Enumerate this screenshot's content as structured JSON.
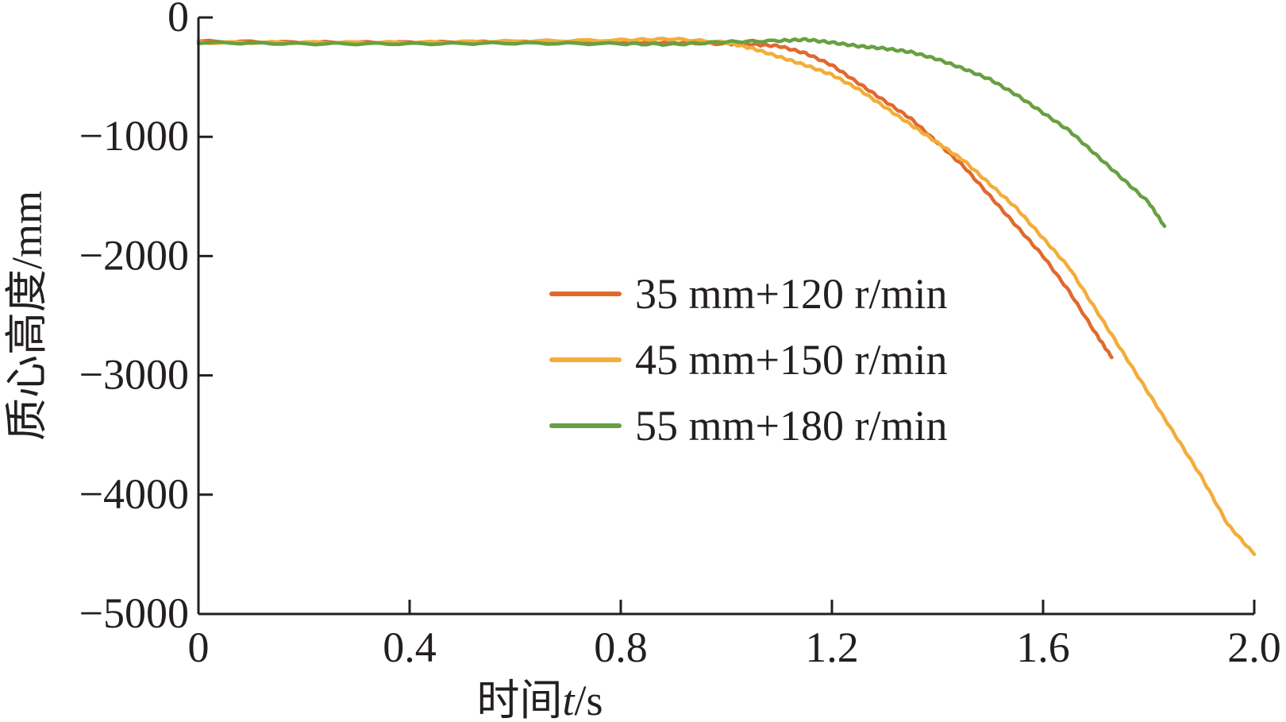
{
  "chart_data": {
    "type": "line",
    "title": "",
    "xlabel_prefix": "时间",
    "xlabel_var": "t",
    "xlabel_unit": "/s",
    "ylabel": "质心高度/mm",
    "xlim": [
      0,
      2.0
    ],
    "ylim": [
      -5000,
      0
    ],
    "xticks": [
      0,
      0.4,
      0.8,
      1.2,
      1.6,
      2.0
    ],
    "xtick_labels": [
      "0",
      "0.4",
      "0.8",
      "1.2",
      "1.6",
      "2.0"
    ],
    "yticks": [
      0,
      -1000,
      -2000,
      -3000,
      -4000,
      -5000
    ],
    "ytick_labels": [
      "0",
      "−1000",
      "−2000",
      "−3000",
      "−4000",
      "−5000"
    ],
    "grid": false,
    "legend_position": "center-right",
    "series": [
      {
        "name": "35 mm+120 r/min",
        "color": "#e0692e",
        "x": [
          0,
          0.2,
          0.4,
          0.6,
          0.8,
          0.9,
          1.0,
          1.05,
          1.1,
          1.15,
          1.2,
          1.25,
          1.3,
          1.35,
          1.4,
          1.45,
          1.5,
          1.55,
          1.6,
          1.65,
          1.7,
          1.73
        ],
        "y": [
          -200,
          -210,
          -210,
          -205,
          -210,
          -210,
          -220,
          -225,
          -240,
          -300,
          -400,
          -550,
          -700,
          -850,
          -1050,
          -1250,
          -1500,
          -1750,
          -2000,
          -2300,
          -2650,
          -2850
        ]
      },
      {
        "name": "45 mm+150 r/min",
        "color": "#f2ad3a",
        "x": [
          0,
          0.2,
          0.4,
          0.6,
          0.8,
          0.9,
          1.0,
          1.05,
          1.1,
          1.15,
          1.2,
          1.25,
          1.3,
          1.35,
          1.4,
          1.45,
          1.5,
          1.55,
          1.6,
          1.65,
          1.7,
          1.75,
          1.8,
          1.85,
          1.9,
          1.95,
          2.0
        ],
        "y": [
          -210,
          -210,
          -210,
          -200,
          -190,
          -180,
          -210,
          -260,
          -330,
          -400,
          -480,
          -600,
          -750,
          -900,
          -1050,
          -1200,
          -1400,
          -1600,
          -1850,
          -2100,
          -2450,
          -2800,
          -3150,
          -3500,
          -3850,
          -4250,
          -4500
        ]
      },
      {
        "name": "55 mm+180 r/min",
        "color": "#68a041",
        "x": [
          0,
          0.2,
          0.4,
          0.6,
          0.8,
          0.9,
          1.0,
          1.1,
          1.15,
          1.2,
          1.25,
          1.3,
          1.35,
          1.4,
          1.45,
          1.5,
          1.55,
          1.6,
          1.65,
          1.7,
          1.75,
          1.8,
          1.83
        ],
        "y": [
          -210,
          -220,
          -220,
          -215,
          -220,
          -225,
          -205,
          -195,
          -185,
          -210,
          -240,
          -260,
          -290,
          -350,
          -430,
          -520,
          -650,
          -800,
          -950,
          -1150,
          -1350,
          -1550,
          -1750
        ]
      }
    ]
  }
}
